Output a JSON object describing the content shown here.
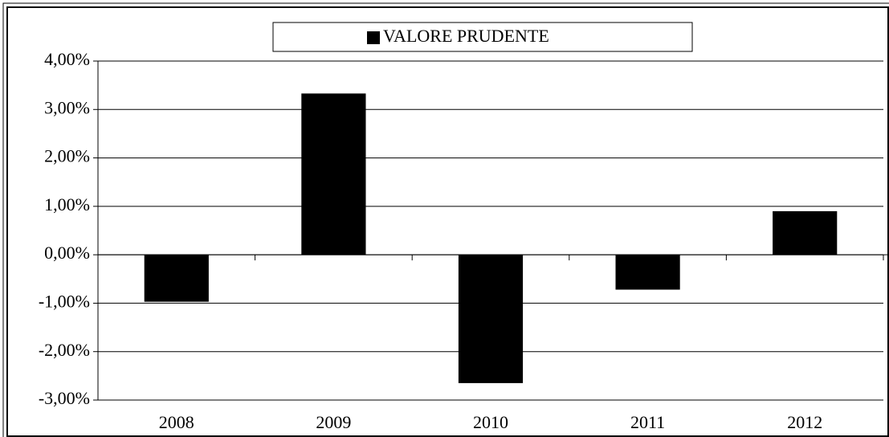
{
  "chart_data": {
    "type": "bar",
    "categories": [
      "2008",
      "2009",
      "2010",
      "2011",
      "2012"
    ],
    "series": [
      {
        "name": "VALORE PRUDENTE",
        "color": "#000000",
        "values": [
          -0.97,
          3.33,
          -2.65,
          -0.72,
          0.9
        ]
      }
    ],
    "ylim": [
      -3,
      4
    ],
    "yticks": [
      {
        "value": -3,
        "label": "-3,00%"
      },
      {
        "value": -2,
        "label": "-2,00%"
      },
      {
        "value": -1,
        "label": "-1,00%"
      },
      {
        "value": 0,
        "label": "0,00%"
      },
      {
        "value": 1,
        "label": "1,00%"
      },
      {
        "value": 2,
        "label": "2,00%"
      },
      {
        "value": 3,
        "label": "3,00%"
      },
      {
        "value": 4,
        "label": "4,00%"
      }
    ],
    "grid": true,
    "legend": "top"
  }
}
